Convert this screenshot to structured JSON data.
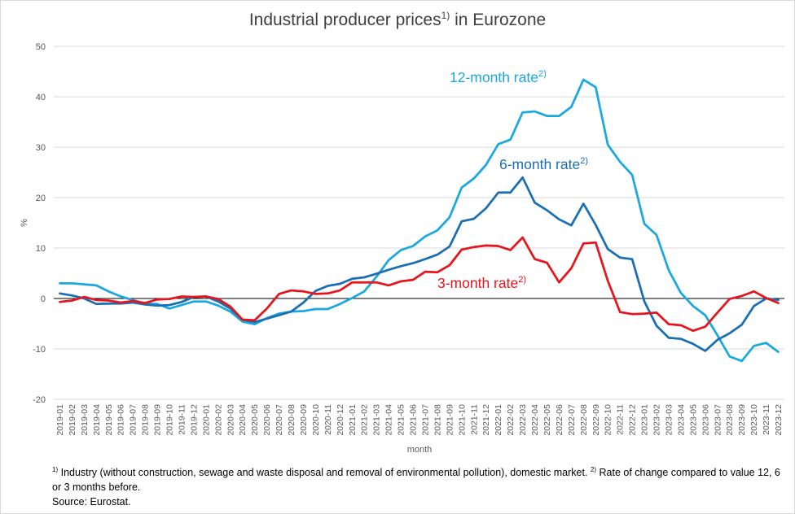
{
  "chart_data": {
    "type": "line",
    "title": "Industrial producer prices",
    "title_footnote_mark": "1)",
    "title_suffix": " in Eurozone",
    "xlabel": "month",
    "ylabel": "%",
    "ylim": [
      -20,
      50
    ],
    "yticks": [
      -20,
      -10,
      0,
      10,
      20,
      30,
      40,
      50
    ],
    "grid": true,
    "legend": "inline labels",
    "x": [
      "2019-01",
      "2019-02",
      "2019-03",
      "2019-04",
      "2019-05",
      "2019-06",
      "2019-07",
      "2019-08",
      "2019-09",
      "2019-10",
      "2019-11",
      "2019-12",
      "2020-01",
      "2020-02",
      "2020-03",
      "2020-04",
      "2020-05",
      "2020-06",
      "2020-07",
      "2020-08",
      "2020-09",
      "2020-10",
      "2020-11",
      "2020-12",
      "2021-01",
      "2021-02",
      "2021-03",
      "2021-04",
      "2021-05",
      "2021-06",
      "2021-07",
      "2021-08",
      "2021-09",
      "2021-10",
      "2021-11",
      "2021-12",
      "2022-01",
      "2022-02",
      "2022-03",
      "2022-04",
      "2022-05",
      "2022-06",
      "2022-07",
      "2022-08",
      "2022-09",
      "2022-10",
      "2022-11",
      "2022-12",
      "2023-01",
      "2023-02",
      "2023-03",
      "2023-04",
      "2023-05",
      "2023-06",
      "2023-07",
      "2023-08",
      "2023-09",
      "2023-10",
      "2023-11",
      "2023-12"
    ],
    "series": [
      {
        "name": "12-month rate",
        "name_footnote_mark": "2)",
        "color": "#1aa8e0",
        "values": [
          3.0,
          3.0,
          2.8,
          2.6,
          1.4,
          0.4,
          -0.3,
          -1.0,
          -1.1,
          -2.0,
          -1.3,
          -0.6,
          -0.6,
          -1.4,
          -2.6,
          -4.6,
          -5.1,
          -3.9,
          -3.0,
          -2.6,
          -2.5,
          -2.1,
          -2.1,
          -1.1,
          0.1,
          1.4,
          4.3,
          7.6,
          9.6,
          10.4,
          12.3,
          13.5,
          16.1,
          22.0,
          23.8,
          26.5,
          30.6,
          31.5,
          36.9,
          37.1,
          36.2,
          36.2,
          38.0,
          43.4,
          41.9,
          30.5,
          27.1,
          24.5,
          14.8,
          12.6,
          5.6,
          1.1,
          -1.5,
          -3.3,
          -7.3,
          -11.5,
          -12.4,
          -9.4,
          -8.8,
          -10.6
        ]
      },
      {
        "name": "6-month rate",
        "name_footnote_mark": "2)",
        "color": "#1a6fb4",
        "values": [
          1.0,
          0.6,
          0.0,
          -1.1,
          -1.0,
          -1.0,
          -0.8,
          -1.2,
          -1.4,
          -1.3,
          -0.7,
          0.3,
          0.4,
          -0.6,
          -2.0,
          -4.2,
          -4.7,
          -4.0,
          -3.3,
          -2.6,
          -0.8,
          1.5,
          2.5,
          2.9,
          3.9,
          4.2,
          4.9,
          5.7,
          6.4,
          7.0,
          7.8,
          8.7,
          10.3,
          15.3,
          15.8,
          17.9,
          21.0,
          21.0,
          24.0,
          19.0,
          17.5,
          15.7,
          14.5,
          18.8,
          14.6,
          9.8,
          8.1,
          7.8,
          -0.6,
          -5.4,
          -7.8,
          -8.0,
          -9.0,
          -10.4,
          -8.2,
          -6.9,
          -5.2,
          -1.5,
          0.0,
          -0.3
        ]
      },
      {
        "name": "3-month rate",
        "name_footnote_mark": "2)",
        "color": "#e8141c",
        "values": [
          -0.7,
          -0.4,
          0.3,
          -0.3,
          -0.4,
          -0.8,
          -0.5,
          -0.9,
          -0.2,
          -0.1,
          0.4,
          0.3,
          0.4,
          -0.1,
          -1.6,
          -4.2,
          -4.3,
          -2.0,
          0.9,
          1.6,
          1.4,
          0.9,
          1.0,
          1.6,
          3.2,
          3.2,
          3.2,
          2.6,
          3.4,
          3.7,
          5.3,
          5.2,
          6.6,
          9.7,
          10.2,
          10.5,
          10.4,
          9.6,
          12.1,
          7.8,
          7.1,
          3.2,
          6.0,
          10.9,
          11.1,
          3.5,
          -2.7,
          -3.1,
          -3.0,
          -2.8,
          -5.1,
          -5.3,
          -6.4,
          -5.6,
          -2.8,
          -0.1,
          0.5,
          1.4,
          0.1,
          -0.9
        ]
      }
    ],
    "inline_labels": {
      "a": "12-month rate",
      "b": "6-month rate",
      "c": "3-month rate",
      "mark": "2)"
    }
  },
  "footnote": {
    "mark1": "1)",
    "text1": " Industry (without construction, sewage and waste disposal and removal of environmental pollution), domestic market. ",
    "mark2": "2)",
    "text2": " Rate of change compared to value 12, 6 or 3 months before.",
    "source": "Source: Eurostat."
  }
}
